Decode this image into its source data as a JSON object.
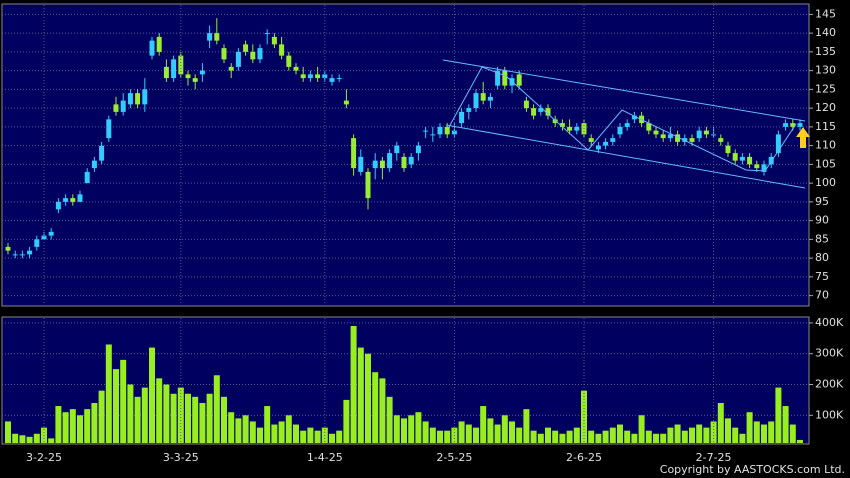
{
  "chart_data": [
    {
      "type": "candlestick",
      "up_color": "#33ccff",
      "down_color": "#99ee33",
      "grid": true,
      "ylim": [
        67.5,
        147.5
      ],
      "yticks": [
        70,
        75,
        80,
        85,
        90,
        95,
        100,
        105,
        110,
        115,
        120,
        125,
        130,
        135,
        140,
        145
      ],
      "categories": [
        null,
        null,
        null,
        null,
        null,
        "3-2-25",
        null,
        null,
        null,
        null,
        null,
        null,
        null,
        null,
        null,
        null,
        null,
        null,
        null,
        null,
        null,
        null,
        null,
        null,
        "3-3-25",
        null,
        null,
        null,
        null,
        null,
        null,
        null,
        null,
        null,
        null,
        null,
        null,
        null,
        null,
        null,
        null,
        null,
        null,
        null,
        "1-4-25",
        null,
        null,
        null,
        null,
        null,
        null,
        null,
        null,
        null,
        null,
        null,
        null,
        null,
        null,
        null,
        null,
        null,
        "2-5-25",
        null,
        null,
        null,
        null,
        null,
        null,
        null,
        null,
        null,
        null,
        null,
        null,
        null,
        null,
        null,
        null,
        null,
        "2-6-25",
        null,
        null,
        null,
        null,
        null,
        null,
        null,
        null,
        null,
        null,
        null,
        null,
        null,
        null,
        null,
        null,
        null,
        "2-7-25",
        null,
        null,
        null,
        null,
        null,
        null,
        null,
        null,
        null,
        null,
        null,
        null
      ],
      "ohlc": [
        [
          83,
          84,
          81,
          82
        ],
        [
          81,
          82,
          80,
          81
        ],
        [
          81,
          82,
          80,
          81
        ],
        [
          81,
          83,
          80,
          82
        ],
        [
          83,
          86,
          82,
          85
        ],
        [
          85,
          87,
          85,
          86
        ],
        [
          86,
          88,
          85,
          87
        ],
        [
          93,
          96,
          92,
          95
        ],
        [
          95,
          97,
          94,
          96
        ],
        [
          96,
          97,
          94,
          95
        ],
        [
          95,
          98,
          95,
          97
        ],
        [
          100,
          104,
          100,
          103
        ],
        [
          104,
          107,
          103,
          106
        ],
        [
          106,
          111,
          105,
          110
        ],
        [
          112,
          118,
          111,
          117
        ],
        [
          121,
          123,
          118,
          119
        ],
        [
          119,
          124,
          118,
          122
        ],
        [
          121,
          125,
          120,
          124
        ],
        [
          124,
          125,
          120,
          121
        ],
        [
          121,
          128,
          119,
          125
        ],
        [
          134,
          139,
          133,
          138
        ],
        [
          139,
          140,
          134,
          135
        ],
        [
          131,
          133,
          127,
          128
        ],
        [
          128,
          134,
          127,
          133
        ],
        [
          134,
          135,
          128,
          129
        ],
        [
          129,
          130,
          126,
          128
        ],
        [
          128,
          129,
          125,
          127
        ],
        [
          129,
          132,
          127,
          130
        ],
        [
          138,
          142,
          136,
          140
        ],
        [
          140,
          144,
          137,
          138
        ],
        [
          136,
          137,
          132,
          133
        ],
        [
          131,
          132,
          128,
          130
        ],
        [
          131,
          136,
          130,
          135
        ],
        [
          137,
          138,
          134,
          135
        ],
        [
          135,
          137,
          132,
          133
        ],
        [
          133,
          137,
          132,
          136
        ],
        [
          140,
          141,
          137,
          140
        ],
        [
          139,
          140,
          136,
          137
        ],
        [
          137,
          139,
          133,
          134
        ],
        [
          134,
          135,
          130,
          131
        ],
        [
          131,
          132,
          129,
          130
        ],
        [
          129,
          131,
          127,
          128
        ],
        [
          128,
          130,
          127,
          129
        ],
        [
          129,
          131,
          127,
          128
        ],
        [
          128,
          130,
          127,
          129
        ],
        [
          127,
          129,
          126,
          128
        ],
        [
          128,
          129,
          127,
          128
        ],
        [
          122,
          125,
          120,
          121
        ],
        [
          112,
          113,
          102,
          104
        ],
        [
          103,
          109,
          102,
          107
        ],
        [
          103,
          104,
          93,
          96
        ],
        [
          104,
          108,
          101,
          106
        ],
        [
          106,
          107,
          101,
          104
        ],
        [
          104,
          109,
          103,
          108
        ],
        [
          108,
          111,
          106,
          110
        ],
        [
          107,
          108,
          103,
          104
        ],
        [
          105,
          108,
          104,
          107
        ],
        [
          108,
          111,
          106,
          110
        ],
        [
          114,
          115,
          112,
          114
        ],
        [
          113,
          115,
          111,
          113
        ],
        [
          113,
          116,
          112,
          115
        ],
        [
          115,
          116,
          112,
          113
        ],
        [
          113,
          116,
          112,
          114
        ],
        [
          116,
          120,
          115,
          119
        ],
        [
          119,
          121,
          117,
          120
        ],
        [
          120,
          125,
          119,
          124
        ],
        [
          124,
          127,
          121,
          122
        ],
        [
          122,
          124,
          120,
          123
        ],
        [
          126,
          131,
          125,
          130
        ],
        [
          130,
          131,
          125,
          126
        ],
        [
          126,
          129,
          124,
          128
        ],
        [
          129,
          130,
          125,
          126
        ],
        [
          122,
          123,
          119,
          120
        ],
        [
          120,
          121,
          117,
          118
        ],
        [
          119,
          121,
          118,
          120
        ],
        [
          120,
          121,
          117,
          118
        ],
        [
          117,
          118,
          115,
          116
        ],
        [
          116,
          117,
          114,
          115
        ],
        [
          115,
          117,
          113,
          114
        ],
        [
          114,
          116,
          113,
          115
        ],
        [
          116,
          117,
          112,
          113
        ],
        [
          112,
          113,
          110,
          111
        ],
        [
          109,
          111,
          108,
          110
        ],
        [
          110,
          112,
          109,
          111
        ],
        [
          111,
          113,
          110,
          112
        ],
        [
          113,
          116,
          112,
          115
        ],
        [
          115,
          117,
          114,
          116
        ],
        [
          117,
          119,
          116,
          118
        ],
        [
          118,
          119,
          115,
          116
        ],
        [
          116,
          117,
          113,
          114
        ],
        [
          114,
          115,
          112,
          113
        ],
        [
          113,
          114,
          111,
          112
        ],
        [
          112,
          115,
          111,
          113
        ],
        [
          113,
          114,
          110,
          111
        ],
        [
          111,
          113,
          110,
          112
        ],
        [
          112,
          113,
          110,
          111
        ],
        [
          112,
          115,
          111,
          114
        ],
        [
          114,
          115,
          112,
          113
        ],
        [
          113,
          115,
          112,
          113
        ],
        [
          112,
          113,
          110,
          111
        ],
        [
          110,
          111,
          107,
          108
        ],
        [
          108,
          109,
          105,
          106
        ],
        [
          106,
          108,
          105,
          107
        ],
        [
          107,
          108,
          104,
          105
        ],
        [
          105,
          106,
          103,
          104
        ],
        [
          103,
          106,
          102,
          105
        ],
        [
          105,
          108,
          104,
          107
        ],
        [
          108,
          114,
          107,
          113
        ],
        [
          115,
          117,
          114,
          116
        ],
        [
          116,
          117,
          114,
          115
        ],
        [
          115,
          117,
          114,
          116
        ]
      ]
    },
    {
      "type": "bar",
      "color": "#99ee22",
      "grid": true,
      "ylim": [
        10000,
        416000
      ],
      "yticks": [
        {
          "value": 100000,
          "label": "100K"
        },
        {
          "value": 200000,
          "label": "200K"
        },
        {
          "value": 300000,
          "label": "300K"
        },
        {
          "value": 400000,
          "label": "400K"
        }
      ],
      "values": [
        80000,
        40000,
        35000,
        30000,
        40000,
        60000,
        25000,
        130000,
        110000,
        120000,
        100000,
        120000,
        140000,
        180000,
        330000,
        250000,
        280000,
        200000,
        160000,
        190000,
        320000,
        220000,
        200000,
        170000,
        190000,
        170000,
        160000,
        140000,
        170000,
        230000,
        160000,
        110000,
        90000,
        100000,
        80000,
        60000,
        130000,
        70000,
        80000,
        100000,
        70000,
        50000,
        60000,
        50000,
        60000,
        40000,
        50000,
        150000,
        390000,
        320000,
        300000,
        240000,
        220000,
        160000,
        100000,
        90000,
        100000,
        110000,
        80000,
        60000,
        50000,
        50000,
        60000,
        80000,
        70000,
        60000,
        130000,
        90000,
        70000,
        100000,
        80000,
        60000,
        120000,
        50000,
        40000,
        60000,
        50000,
        40000,
        50000,
        60000,
        180000,
        50000,
        40000,
        50000,
        60000,
        70000,
        50000,
        40000,
        100000,
        50000,
        40000,
        40000,
        60000,
        70000,
        50000,
        60000,
        70000,
        60000,
        80000,
        140000,
        90000,
        60000,
        40000,
        110000,
        80000,
        70000,
        80000,
        190000,
        130000,
        70000,
        20000
      ]
    }
  ],
  "copyright": "Copyright by AASTOCKS.com Ltd."
}
